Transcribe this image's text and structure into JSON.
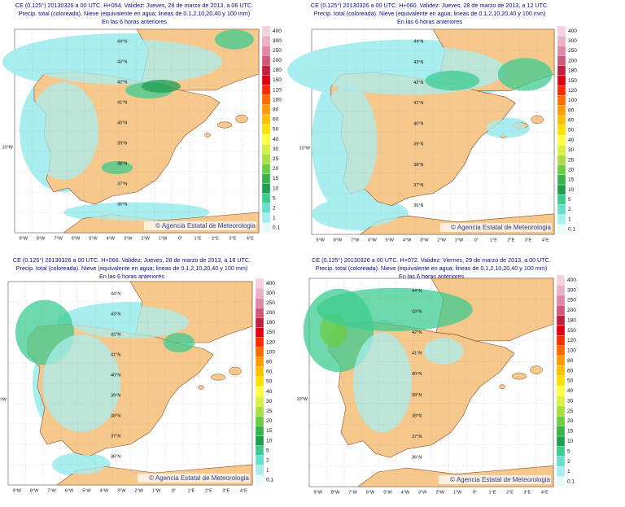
{
  "panels": [
    {
      "header": [
        "CE (0.125°) 20130326 a 00 UTC.  H+054. Validez: Jueves, 28 de marzo de 2013,  a  06 UTC.",
        "Precip. total (coloreada). Nieve (equivalente en agua; lineas de 0.1,2,10,20,40 y 100 mm)",
        "En las 6 horas anteriores"
      ]
    },
    {
      "header": [
        "CE (0.125°) 20130326 a 00 UTC.  H+060. Validez: Jueves, 28 de marzo de 2013,  a  12 UTC.",
        "Precip. total (coloreada). Nieve (equivalente en agua; lineas de 0.1,2,10,20,40 y 100 mm)",
        "En las 6 horas anteriores"
      ]
    },
    {
      "header": [
        "CE (0.125°) 20130326 a 00 UTC.  H+066. Validez: Jueves, 28 de marzo de 2013,  a  18 UTC.",
        "Precip. total (coloreada). Nieve (equivalente en agua; lineas de 0.1,2,10,20,40 y 100 mm)",
        "En las 6 horas anteriores"
      ]
    },
    {
      "header": [
        "CE (0.125°) 20130326 a 00 UTC.  H+072. Validez: Viernes, 29 de marzo de 2013,  a  00 UTC.",
        "Precip. total (coloreada). Nieve (equivalente en agua; lineas de 0.1,2,10,20,40 y 100 mm)",
        "En las 6 horas anteriores"
      ]
    }
  ],
  "scale": [
    "400",
    "300",
    "250",
    "200",
    "180",
    "150",
    "120",
    "100",
    "80",
    "60",
    "50",
    "40",
    "30",
    "25",
    "20",
    "15",
    "10",
    "5",
    "2",
    "1",
    "0.1"
  ],
  "lon_labels": [
    "9°W",
    "8°W",
    "7°W",
    "6°W",
    "5°W",
    "4°W",
    "3°W",
    "2°W",
    "1°W",
    "0°",
    "1°E",
    "2°E",
    "3°E",
    "4°E"
  ],
  "lat_labels": [
    "44°N",
    "43°N",
    "42°N",
    "41°N",
    "40°N",
    "39°N",
    "38°N",
    "37°N",
    "36°N"
  ],
  "west_label": "10°W",
  "watermark": "© Agencia Estatal de Meteorologia"
}
